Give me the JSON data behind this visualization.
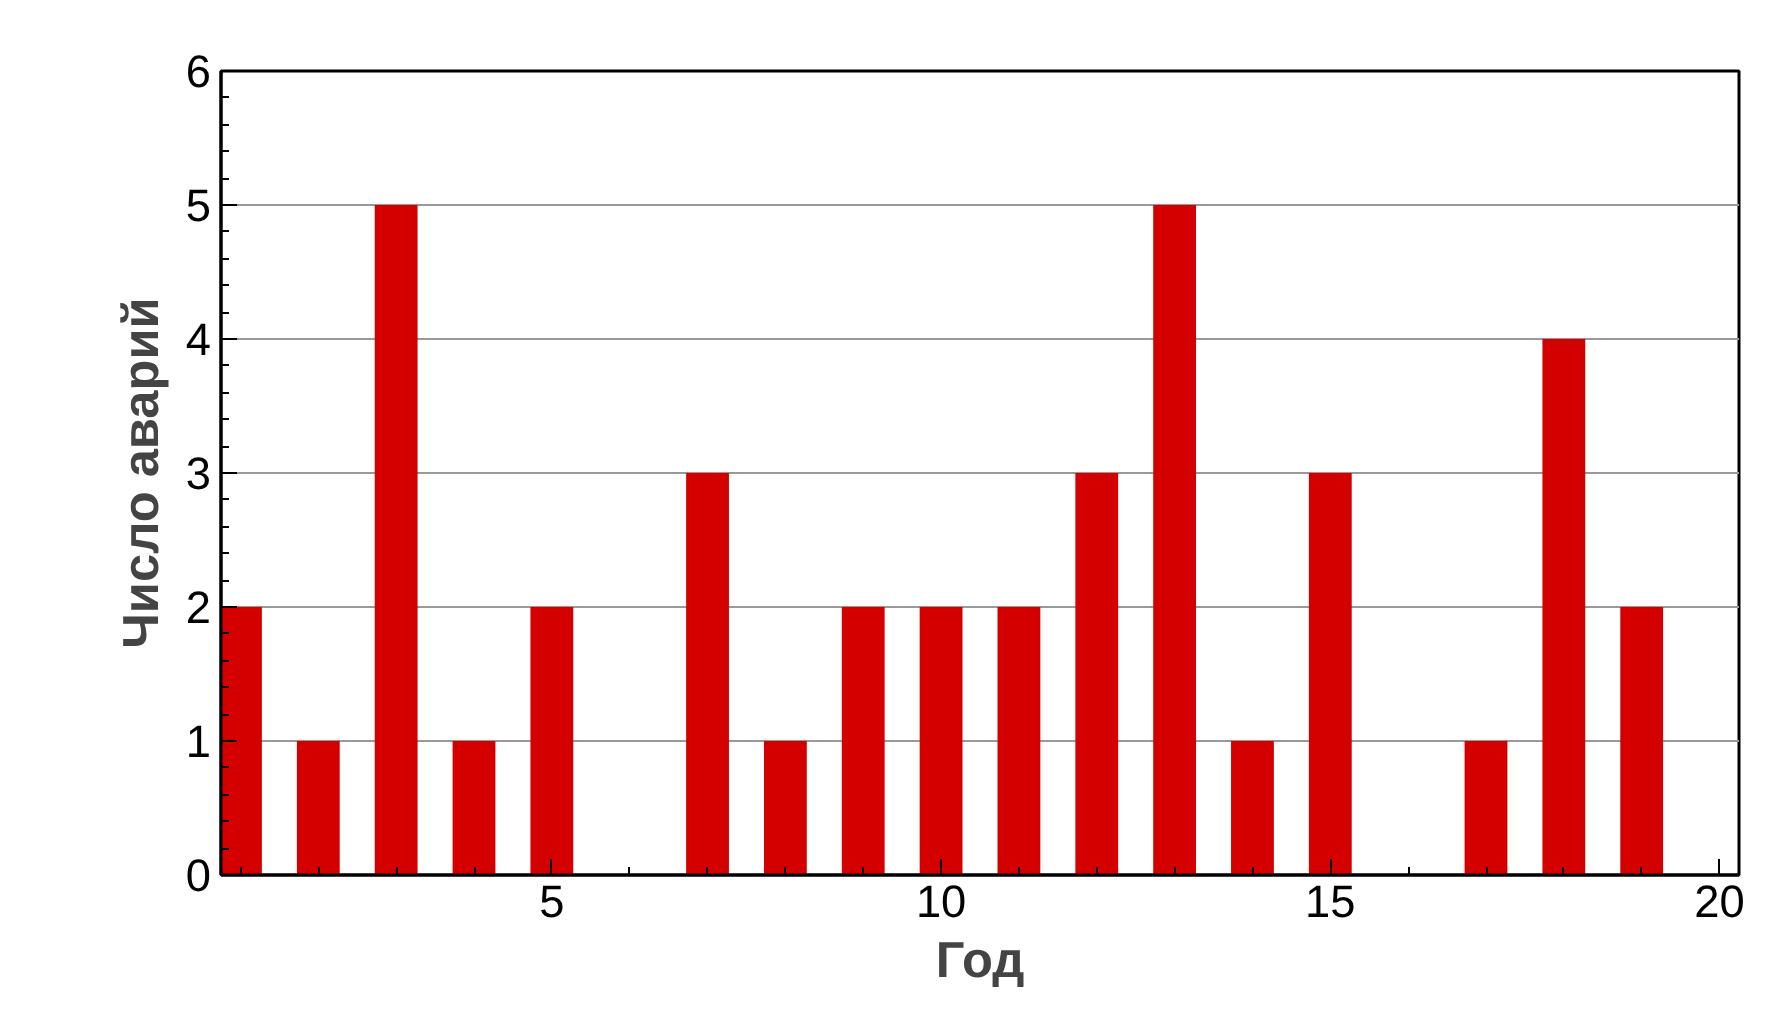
{
  "chart_data": {
    "type": "bar",
    "xlabel": "Год",
    "ylabel": "Число аварий",
    "x": [
      1,
      2,
      3,
      4,
      5,
      6,
      7,
      8,
      9,
      10,
      11,
      12,
      13,
      14,
      15,
      16,
      17,
      18,
      19
    ],
    "values": [
      2,
      1,
      5,
      1,
      2,
      0,
      3,
      1,
      2,
      2,
      2,
      3,
      5,
      1,
      3,
      0,
      1,
      4,
      2
    ],
    "color": "#d40000",
    "xlim": [
      0.75,
      20.25
    ],
    "xticks": [
      5,
      10,
      15,
      20
    ],
    "ylim": [
      0,
      6
    ],
    "yticks": [
      0,
      1,
      2,
      3,
      4,
      5,
      6
    ],
    "grid": "y"
  }
}
